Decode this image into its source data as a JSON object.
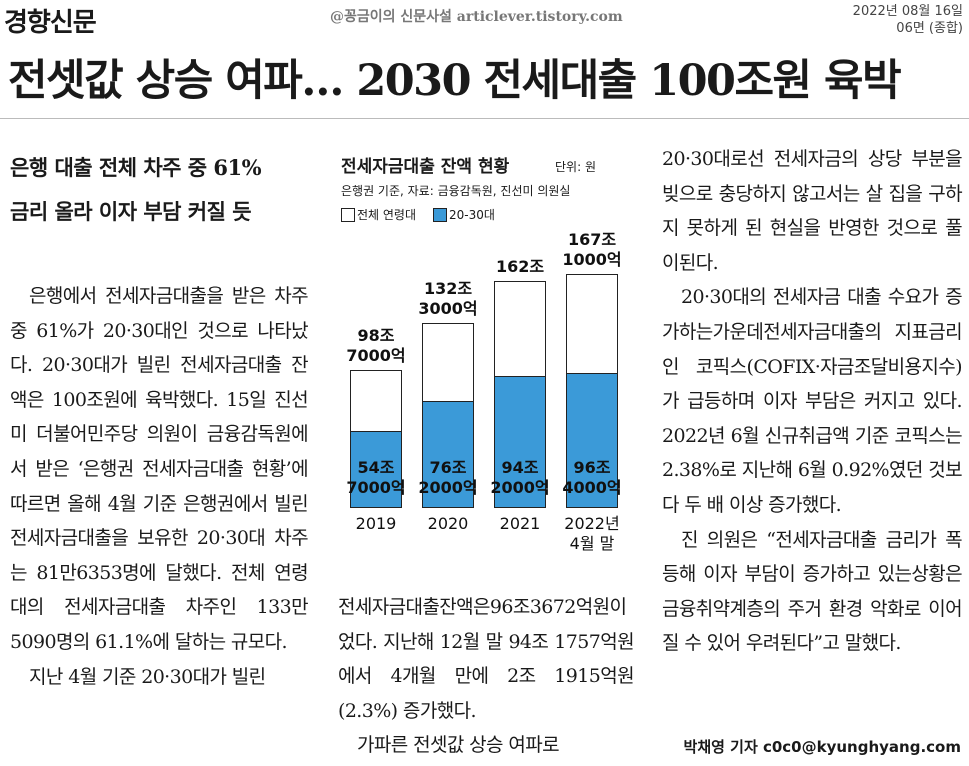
{
  "masthead": {
    "paper": "경향신문",
    "watermark": "@꽁금이의 신문사설 articlever.tistory.com",
    "date": "2022년 08월 16일",
    "page": "06면 (종합)"
  },
  "headline": "전셋값 상승 여파… 2030 전세대출 100조원 육박",
  "subheads": [
    "은행 대출 전체 차주 중 61%",
    "금리 올라 이자 부담 커질 듯"
  ],
  "columns": [
    [
      "은행에서 전세자금대출을 받은 차주 중 61%가 20·30대인 것으로 나타났다. 20·30대가 빌린 전세자금대출 잔액은 100조원에 육박했다. 15일 진선미 더불어민주당 의원이 금융감독원에서 받은 ‘은행권 전세자금대출 현황’에 따르면 올해 4월 기준 은행권에서 빌린 전세자금대출을 보유한 20·30대 차주는 81만6353명에 달했다. 전체 연령대의 전세자금대출 차주인 133만5090명의 61.1%에 달하는 규모다.",
      "지난 4월 기준 20·30대가 빌린"
    ],
    [
      "전세자금대출잔액은96조3672억원이었다. 지난해 12월 말 94조 1757억원에서 4개월 만에 2조 1915억원(2.3%) 증가했다.",
      "가파른 전셋값 상승 여파로"
    ],
    [
      "20·30대로선 전세자금의 상당 부분을 빚으로 충당하지 않고서는 살 집을 구하지 못하게 된 현실을 반영한 것으로 풀이된다.",
      "20·30대의 전세자금 대출 수요가 증가하는가운데전세자금대출의 지표금리인 코픽스(COFIX·자금조달비용지수)가 급등하며 이자 부담은 커지고 있다. 2022년 6월 신규취급액 기준 코픽스는 2.38%로 지난해 6월 0.92%였던 것보다 두 배 이상 증가했다.",
      "진 의원은 “전세자금대출 금리가 폭등해 이자 부담이 증가하고 있는상황은금융취약계층의 주거 환경 악화로 이어질 수 있어 우려된다”고 말했다."
    ]
  ],
  "byline": "박채영 기자 c0c0@kyunghyang.com",
  "chart_data": {
    "type": "bar",
    "title": "전세자금대출 잔액 현황",
    "unit": "단위: 원",
    "source": "은행권 기준, 자료: 금융감독원, 진선미 의원실",
    "categories": [
      "2019",
      "2020",
      "2021",
      "2022년\n4월 말"
    ],
    "series": [
      {
        "name": "전체 연령대",
        "color": "#ffffff",
        "values": [
          98.7,
          132.3,
          162,
          167.1
        ],
        "value_labels": [
          "98조\n7000억",
          "132조\n3000억",
          "162조",
          "167조\n1000억"
        ]
      },
      {
        "name": "20-30대",
        "color": "#3b9ad8",
        "values": [
          54.7,
          76.2,
          94.2,
          96.4
        ],
        "value_labels": [
          "54조\n7000억",
          "76조\n2000억",
          "94조\n2000억",
          "96조\n4000억"
        ]
      }
    ]
  }
}
